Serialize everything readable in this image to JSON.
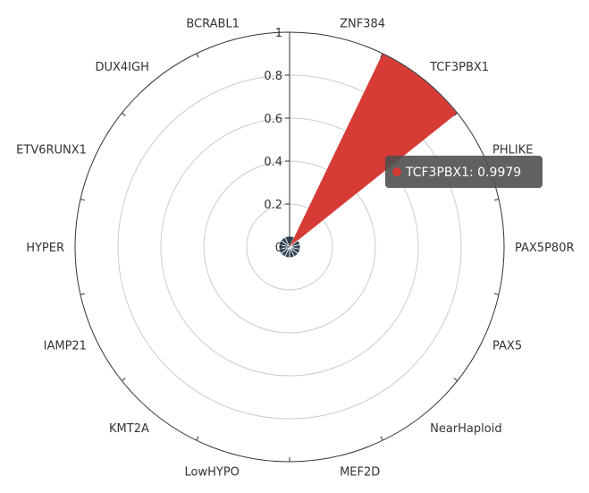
{
  "chart_data": {
    "type": "polar-bar",
    "categories": [
      "ZNF384",
      "TCF3PBX1",
      "PHLIKE",
      "PAX5P80R",
      "PAX5",
      "NearHaploid",
      "MEF2D",
      "LowHYPO",
      "KMT2A",
      "IAMP21",
      "HYPER",
      "ETV6RUNX1",
      "DUX4IGH",
      "BCRABL1"
    ],
    "values": [
      0.0001,
      0.9979,
      0.0002,
      0.0001,
      0.0003,
      0.0001,
      0.0002,
      0.0001,
      0.0002,
      0.0001,
      0.0003,
      0.0002,
      0.0001,
      0.0003
    ],
    "radial_axis": {
      "min": 0,
      "max": 1,
      "ticks": [
        "0",
        "0.2",
        "0.4",
        "0.6",
        "0.8",
        "1"
      ]
    },
    "colors": {
      "highlight": "#d63b36",
      "base": "#2f4554",
      "grid": "#cccccc",
      "axis": "#333333"
    },
    "tooltip": {
      "label": "TCF3PBX1: 0.9979",
      "category_index": 1
    }
  }
}
